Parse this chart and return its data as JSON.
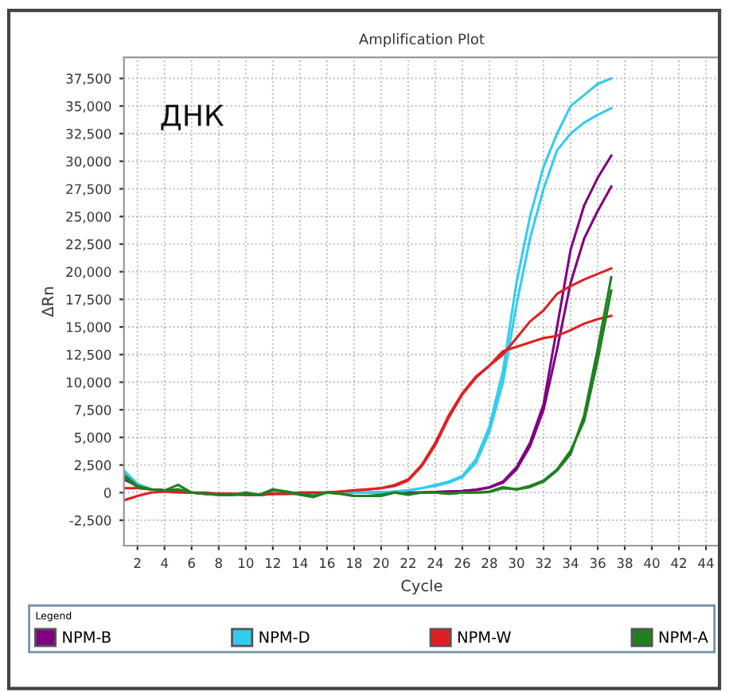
{
  "chart_data": {
    "type": "line",
    "title": "Amplification Plot",
    "xlabel": "Cycle",
    "ylabel": "ΔRn",
    "legend_title": "Legend",
    "annotations": [
      "ДНК"
    ],
    "x": [
      1,
      2,
      3,
      4,
      5,
      6,
      7,
      8,
      9,
      10,
      11,
      12,
      13,
      14,
      15,
      16,
      17,
      18,
      19,
      20,
      21,
      22,
      23,
      24,
      25,
      26,
      27,
      28,
      29,
      30,
      31,
      32,
      33,
      34,
      35,
      36,
      37
    ],
    "series": [
      {
        "name": "NPM-B",
        "color": "#800080",
        "values": [
          1500,
          700,
          300,
          200,
          100,
          0,
          -100,
          -100,
          -200,
          -200,
          -200,
          -100,
          -100,
          -100,
          -100,
          0,
          0,
          0,
          0,
          0,
          0,
          0,
          0,
          50,
          100,
          150,
          250,
          500,
          1000,
          2300,
          4500,
          8000,
          15000,
          22000,
          26000,
          28500,
          30500
        ]
      },
      {
        "name": null,
        "color": "#800080",
        "values": [
          1200,
          600,
          300,
          200,
          100,
          0,
          -100,
          -100,
          -200,
          -200,
          -200,
          -100,
          -100,
          -100,
          -100,
          0,
          0,
          0,
          0,
          0,
          0,
          0,
          0,
          50,
          100,
          150,
          250,
          450,
          900,
          2100,
          4200,
          7500,
          13000,
          19000,
          23000,
          25500,
          27700
        ]
      },
      {
        "name": "NPM-D",
        "color": "#33ccee",
        "values": [
          2000,
          800,
          300,
          200,
          100,
          0,
          -100,
          -100,
          -200,
          -200,
          -200,
          -100,
          -100,
          -100,
          -100,
          0,
          0,
          0,
          0,
          0,
          100,
          200,
          400,
          700,
          1000,
          1500,
          3000,
          6000,
          11000,
          19000,
          25000,
          29500,
          32500,
          35000,
          36000,
          37000,
          37500
        ]
      },
      {
        "name": null,
        "color": "#33ccee",
        "values": [
          1800,
          700,
          300,
          200,
          100,
          0,
          -100,
          -100,
          -200,
          -200,
          -200,
          -100,
          -100,
          -100,
          -100,
          0,
          0,
          0,
          0,
          0,
          100,
          200,
          400,
          600,
          900,
          1400,
          2700,
          5500,
          10000,
          17000,
          23000,
          27500,
          31000,
          32500,
          33500,
          34200,
          34800
        ]
      },
      {
        "name": "NPM-W",
        "color": "#e02020",
        "values": [
          -700,
          -300,
          0,
          100,
          0,
          0,
          -100,
          -100,
          -100,
          -200,
          -200,
          -100,
          -100,
          0,
          0,
          0,
          100,
          200,
          300,
          400,
          700,
          1200,
          2500,
          4500,
          7000,
          9000,
          10500,
          11500,
          12500,
          14000,
          15500,
          16500,
          18000,
          18700,
          19300,
          19800,
          20300
        ]
      },
      {
        "name": null,
        "color": "#e02020",
        "values": [
          400,
          400,
          300,
          200,
          100,
          0,
          0,
          -100,
          -100,
          -200,
          -200,
          -100,
          -100,
          0,
          0,
          0,
          100,
          200,
          300,
          400,
          600,
          1100,
          2400,
          4300,
          6800,
          8900,
          10400,
          11500,
          12800,
          13200,
          13600,
          14000,
          14200,
          14700,
          15300,
          15700,
          16000
        ]
      },
      {
        "name": "NPM-A",
        "color": "#208020",
        "values": [
          1600,
          600,
          300,
          200,
          700,
          0,
          -100,
          -200,
          -200,
          -100,
          -200,
          300,
          100,
          -200,
          -400,
          0,
          -100,
          -300,
          -300,
          -300,
          0,
          -200,
          0,
          0,
          -100,
          0,
          0,
          100,
          500,
          300,
          500,
          1000,
          2000,
          3500,
          7000,
          13000,
          19500
        ]
      },
      {
        "name": null,
        "color": "#208020",
        "values": [
          1400,
          500,
          300,
          200,
          300,
          0,
          -100,
          -200,
          -200,
          0,
          -200,
          200,
          100,
          -100,
          -300,
          0,
          -100,
          -300,
          -300,
          -200,
          0,
          -100,
          0,
          0,
          -100,
          0,
          0,
          50,
          400,
          300,
          600,
          1100,
          2100,
          3800,
          6500,
          12000,
          18300
        ]
      }
    ],
    "xlim": [
      1,
      45
    ],
    "ylim": [
      -4800,
      39400
    ],
    "xticks": [
      2,
      4,
      6,
      8,
      10,
      12,
      14,
      16,
      18,
      20,
      22,
      24,
      26,
      28,
      30,
      32,
      34,
      36,
      38,
      40,
      42,
      44
    ],
    "yticks": [
      {
        "value": -2500,
        "label": "-2,500"
      },
      0,
      {
        "value": 2500,
        "label": "2,500"
      },
      {
        "value": 5000,
        "label": "5,000"
      },
      {
        "value": 7500,
        "label": "7,500"
      },
      {
        "value": 10000,
        "label": "10,000"
      },
      {
        "value": 12500,
        "label": "12,500"
      },
      {
        "value": 15000,
        "label": "15,000"
      },
      {
        "value": 17500,
        "label": "17,500"
      },
      {
        "value": 20000,
        "label": "20,000"
      },
      {
        "value": 22500,
        "label": "22,500"
      },
      {
        "value": 25000,
        "label": "25,000"
      },
      {
        "value": 27500,
        "label": "27,500"
      },
      {
        "value": 30000,
        "label": "30,000"
      },
      {
        "value": 32500,
        "label": "32,500"
      },
      {
        "value": 35000,
        "label": "35,000"
      },
      {
        "value": 37500,
        "label": "37,500"
      }
    ],
    "grid": true,
    "legend": "bottom",
    "line_style": "solid"
  }
}
